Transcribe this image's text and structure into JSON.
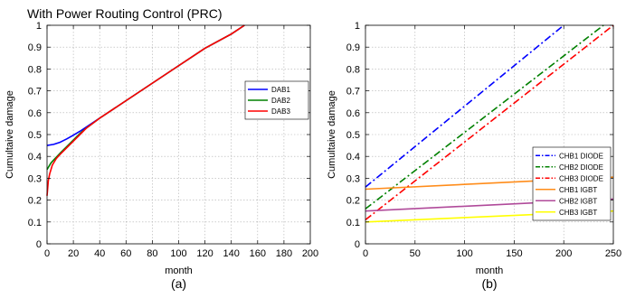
{
  "chart_data": [
    {
      "type": "line",
      "panel_caption": "(a)",
      "title": "With Power Routing Control (PRC)",
      "xlabel": "month",
      "ylabel": "Cumultaive damage",
      "xlim": [
        0,
        200
      ],
      "ylim": [
        0,
        1
      ],
      "xticks": [
        0,
        20,
        40,
        60,
        80,
        100,
        120,
        140,
        160,
        180,
        200
      ],
      "yticks": [
        0,
        0.1,
        0.2,
        0.3,
        0.4,
        0.5,
        0.6,
        0.7,
        0.8,
        0.9,
        1
      ],
      "grid": true,
      "legend_position": "right-middle",
      "series": [
        {
          "name": "DAB1",
          "color": "#0000ff",
          "style": "solid",
          "x": [
            0,
            5,
            10,
            15,
            20,
            25,
            30,
            35,
            40,
            60,
            80,
            100,
            120,
            140,
            150
          ],
          "y": [
            0.45,
            0.455,
            0.465,
            0.48,
            0.497,
            0.515,
            0.535,
            0.555,
            0.575,
            0.655,
            0.735,
            0.815,
            0.895,
            0.96,
            1.0
          ]
        },
        {
          "name": "DAB2",
          "color": "#008000",
          "style": "solid",
          "x": [
            0,
            3,
            6,
            10,
            15,
            20,
            25,
            30,
            40,
            60,
            80,
            100,
            120,
            140,
            150
          ],
          "y": [
            0.34,
            0.37,
            0.39,
            0.415,
            0.445,
            0.475,
            0.505,
            0.53,
            0.575,
            0.655,
            0.735,
            0.815,
            0.895,
            0.96,
            1.0
          ]
        },
        {
          "name": "DAB3",
          "color": "#ff0000",
          "style": "solid",
          "x": [
            0,
            1,
            2,
            4,
            7,
            10,
            15,
            20,
            25,
            30,
            40,
            60,
            80,
            100,
            120,
            140,
            150
          ],
          "y": [
            0.22,
            0.29,
            0.32,
            0.36,
            0.39,
            0.41,
            0.44,
            0.47,
            0.5,
            0.53,
            0.575,
            0.655,
            0.735,
            0.815,
            0.895,
            0.96,
            1.0
          ]
        }
      ]
    },
    {
      "type": "line",
      "panel_caption": "(b)",
      "title": "",
      "xlabel": "month",
      "ylabel": "Cumultaive damage",
      "xlim": [
        0,
        250
      ],
      "ylim": [
        0,
        1
      ],
      "xticks": [
        0,
        50,
        100,
        150,
        200,
        250
      ],
      "yticks": [
        0,
        0.1,
        0.2,
        0.3,
        0.4,
        0.5,
        0.6,
        0.7,
        0.8,
        0.9,
        1
      ],
      "grid": true,
      "legend_position": "right-middle",
      "series": [
        {
          "name": "CHB1 DIODE",
          "color": "#0000ff",
          "style": "dashdot",
          "x": [
            0,
            200
          ],
          "y": [
            0.26,
            1.0
          ]
        },
        {
          "name": "CHB2 DIODE",
          "color": "#008000",
          "style": "dashdot",
          "x": [
            0,
            240
          ],
          "y": [
            0.16,
            1.0
          ]
        },
        {
          "name": "CHB3 DIODE",
          "color": "#ff0000",
          "style": "dashdot",
          "x": [
            0,
            250
          ],
          "y": [
            0.11,
            1.0
          ]
        },
        {
          "name": "CHB1 IGBT",
          "color": "#ff8c1a",
          "style": "solid",
          "x": [
            0,
            250
          ],
          "y": [
            0.25,
            0.305
          ]
        },
        {
          "name": "CHB2 IGBT",
          "color": "#b04a9a",
          "style": "solid",
          "x": [
            0,
            250
          ],
          "y": [
            0.15,
            0.205
          ]
        },
        {
          "name": "CHB3 IGBT",
          "color": "#ffff00",
          "style": "solid",
          "x": [
            0,
            250
          ],
          "y": [
            0.1,
            0.15
          ]
        }
      ]
    }
  ]
}
